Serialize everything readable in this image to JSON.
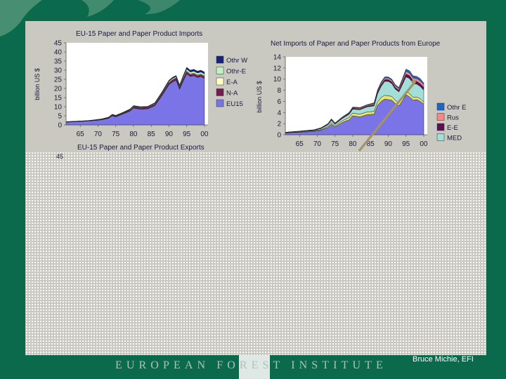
{
  "slide": {
    "footer_logo_text": "EUROPEAN FOREST INSTITUTE",
    "credit": "Bruce Michie, EFI",
    "colors": {
      "background": "#0b6a4c",
      "panel": "#c9c9c2"
    }
  },
  "chart_data": [
    {
      "type": "area",
      "title": "EU-15 Paper and Paper Product Imports",
      "ylabel": "billion US $",
      "xlabel": "",
      "x_ticks": [
        "65",
        "70",
        "75",
        "80",
        "85",
        "90",
        "95",
        "00"
      ],
      "y_ticks": [
        "0",
        "5",
        "10",
        "15",
        "20",
        "25",
        "30",
        "35",
        "40",
        "45"
      ],
      "ylim": [
        0,
        45
      ],
      "xlim": [
        1961,
        2001
      ],
      "stacked": true,
      "x": [
        1961,
        1963,
        1965,
        1967,
        1969,
        1971,
        1973,
        1974,
        1975,
        1977,
        1979,
        1980,
        1982,
        1984,
        1986,
        1988,
        1989,
        1990,
        1991,
        1992,
        1993,
        1994,
        1995,
        1996,
        1997,
        1998,
        1999,
        2000
      ],
      "series": [
        {
          "name": "EU15",
          "color": "#7b74e6",
          "values": [
            1.5,
            1.7,
            1.9,
            2.1,
            2.4,
            2.8,
            3.6,
            5.0,
            4.4,
            6.0,
            7.5,
            9.2,
            8.6,
            8.8,
            10.5,
            16,
            19,
            22,
            23.5,
            24.5,
            19.5,
            24,
            28,
            26.5,
            27,
            26,
            26.5,
            25.5
          ]
        },
        {
          "name": "N-A",
          "color": "#7a1a52",
          "values": [
            0.1,
            0.1,
            0.1,
            0.1,
            0.15,
            0.2,
            0.3,
            0.4,
            0.35,
            0.4,
            0.5,
            0.6,
            0.6,
            0.6,
            0.7,
            0.8,
            0.9,
            1.0,
            1.0,
            1.0,
            0.9,
            1.0,
            1.1,
            1.0,
            1.0,
            1.0,
            1.0,
            1.0
          ]
        },
        {
          "name": "E-A",
          "color": "#ffffc4",
          "values": [
            0.05,
            0.05,
            0.05,
            0.05,
            0.05,
            0.1,
            0.1,
            0.1,
            0.1,
            0.1,
            0.15,
            0.2,
            0.2,
            0.2,
            0.2,
            0.3,
            0.3,
            0.3,
            0.3,
            0.3,
            0.3,
            0.3,
            0.4,
            0.4,
            0.4,
            0.4,
            0.4,
            0.4
          ]
        },
        {
          "name": "Othr-E",
          "color": "#c2f2c2",
          "values": [
            0.05,
            0.05,
            0.05,
            0.05,
            0.1,
            0.1,
            0.1,
            0.2,
            0.2,
            0.2,
            0.3,
            0.3,
            0.3,
            0.3,
            0.4,
            0.5,
            0.6,
            0.6,
            0.7,
            0.7,
            0.7,
            0.9,
            1.1,
            1.1,
            1.1,
            1.1,
            1.1,
            1.1
          ]
        },
        {
          "name": "Othr W",
          "color": "#16237a",
          "values": [
            0.1,
            0.1,
            0.1,
            0.1,
            0.1,
            0.1,
            0.2,
            0.2,
            0.2,
            0.2,
            0.3,
            0.3,
            0.3,
            0.3,
            0.4,
            0.5,
            0.6,
            0.6,
            0.6,
            0.6,
            0.6,
            0.8,
            1.0,
            1.0,
            1.0,
            1.0,
            1.0,
            1.0
          ]
        }
      ],
      "legend_position": "right"
    },
    {
      "type": "area",
      "title": "Net Imports of Paper and Paper Products from Europe",
      "ylabel": "billion US $",
      "xlabel": "",
      "x_ticks": [
        "65",
        "70",
        "75",
        "80",
        "85",
        "90",
        "95",
        "00"
      ],
      "y_ticks": [
        "0",
        "2",
        "4",
        "6",
        "8",
        "10",
        "12",
        "14"
      ],
      "ylim": [
        0,
        14
      ],
      "xlim": [
        1961,
        2001
      ],
      "stacked": true,
      "x": [
        1961,
        1963,
        1965,
        1967,
        1969,
        1971,
        1973,
        1974,
        1975,
        1977,
        1979,
        1980,
        1982,
        1984,
        1986,
        1987,
        1988,
        1989,
        1990,
        1991,
        1992,
        1993,
        1994,
        1995,
        1996,
        1997,
        1998,
        1999,
        2000
      ],
      "series": [
        {
          "name": "",
          "color": "#7b74e6",
          "values": [
            0.3,
            0.4,
            0.45,
            0.5,
            0.6,
            0.8,
            1.3,
            1.9,
            1.4,
            2.2,
            2.7,
            3.4,
            3.2,
            3.6,
            3.7,
            5.3,
            6.0,
            6.4,
            6.3,
            6.2,
            5.6,
            5.2,
            6.1,
            7.2,
            6.8,
            6.2,
            6.3,
            6.0,
            5.5
          ]
        },
        {
          "name": "",
          "color": "#e8e36a",
          "values": [
            0.05,
            0.05,
            0.05,
            0.1,
            0.1,
            0.1,
            0.2,
            0.3,
            0.2,
            0.3,
            0.4,
            0.5,
            0.5,
            0.5,
            0.5,
            0.6,
            0.7,
            0.7,
            0.7,
            0.7,
            0.6,
            0.5,
            0.5,
            0.6,
            0.6,
            0.5,
            0.5,
            0.5,
            0.4
          ]
        },
        {
          "name": "MED",
          "color": "#a3ded8",
          "values": [
            0.05,
            0.05,
            0.1,
            0.1,
            0.1,
            0.2,
            0.3,
            0.4,
            0.3,
            0.4,
            0.6,
            0.7,
            0.8,
            0.9,
            1.0,
            1.5,
            2.0,
            2.5,
            2.6,
            2.3,
            2.0,
            2.0,
            2.4,
            2.6,
            2.7,
            2.5,
            2.3,
            2.2,
            2.1
          ]
        },
        {
          "name": "E-E",
          "color": "#5b0f57",
          "values": [
            0.02,
            0.02,
            0.02,
            0.03,
            0.03,
            0.05,
            0.07,
            0.1,
            0.08,
            0.1,
            0.12,
            0.15,
            0.15,
            0.15,
            0.2,
            0.25,
            0.3,
            0.3,
            0.3,
            0.3,
            0.3,
            0.3,
            0.4,
            0.5,
            0.5,
            0.5,
            0.5,
            0.5,
            0.5
          ]
        },
        {
          "name": "Rus",
          "color": "#f28a8a",
          "values": [
            0.02,
            0.02,
            0.02,
            0.03,
            0.03,
            0.05,
            0.07,
            0.1,
            0.08,
            0.1,
            0.12,
            0.15,
            0.15,
            0.15,
            0.2,
            0.25,
            0.3,
            0.3,
            0.3,
            0.3,
            0.3,
            0.3,
            0.4,
            0.5,
            0.5,
            0.5,
            0.5,
            0.5,
            0.5
          ]
        },
        {
          "name": "Othr E",
          "color": "#1c66c7",
          "values": [
            0.02,
            0.02,
            0.02,
            0.03,
            0.03,
            0.05,
            0.06,
            0.08,
            0.07,
            0.08,
            0.1,
            0.1,
            0.1,
            0.1,
            0.15,
            0.2,
            0.2,
            0.2,
            0.2,
            0.2,
            0.2,
            0.2,
            0.3,
            0.4,
            0.4,
            0.4,
            0.4,
            0.4,
            0.3
          ]
        }
      ],
      "legend_position": "right"
    },
    {
      "type": "area",
      "title": "EU-15 Paper and Paper Product Exports",
      "y_ticks": [
        "45"
      ],
      "partially_hidden": true
    }
  ]
}
